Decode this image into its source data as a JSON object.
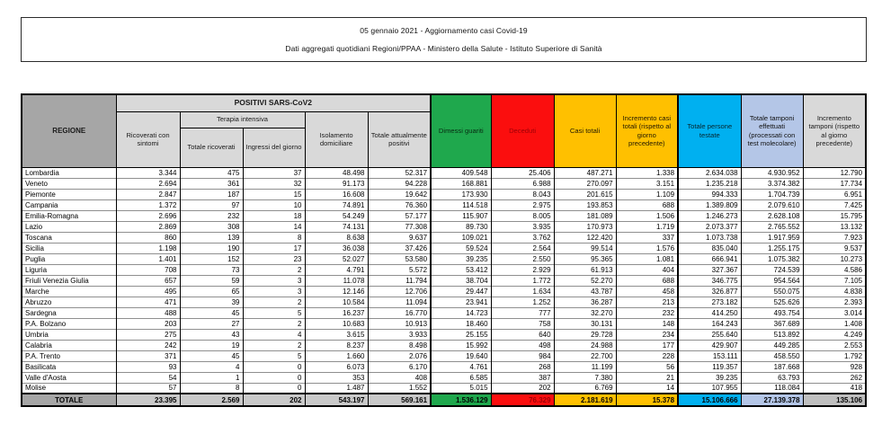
{
  "title": {
    "line1": "05 gennaio 2021 - Aggiornamento casi Covid-19",
    "line2": "Dati aggregati quotidiani Regioni/PPAA - Ministero della Salute - Istituto Superiore di Sanità"
  },
  "table": {
    "headers": {
      "regione": "REGIONE",
      "positivi_group": "POSITIVI SARS-CoV2",
      "ricoverati_sintomi": "Ricoverati con sintomi",
      "terapia_group": "Terapia intensiva",
      "totale_ricoverati": "Totale ricoverati",
      "ingressi_giorno": "Ingressi del giorno",
      "isolamento": "Isolamento domiciliare",
      "attualmente_positivi": "Totale attualmente positivi",
      "dimessi_guariti": "Dimessi guariti",
      "deceduti": "Deceduti",
      "casi_totali": "Casi totali",
      "incremento_casi": "Incremento casi totali (rispetto al giorno precedente)",
      "persone_testate": "Totale persone testate",
      "tamponi_effettuati": "Totale tamponi effettuati (processati con test molecolare)",
      "incremento_tamponi": "Incremento tamponi (rispetto al giorno precedente)"
    },
    "rows": [
      {
        "region": "Lombardia",
        "values": [
          "3.344",
          "475",
          "37",
          "48.498",
          "52.317",
          "409.548",
          "25.406",
          "487.271",
          "1.338",
          "2.634.038",
          "4.930.952",
          "12.790"
        ]
      },
      {
        "region": "Veneto",
        "values": [
          "2.694",
          "361",
          "32",
          "91.173",
          "94.228",
          "168.881",
          "6.988",
          "270.097",
          "3.151",
          "1.235.218",
          "3.374.382",
          "17.734"
        ]
      },
      {
        "region": "Piemonte",
        "values": [
          "2.847",
          "187",
          "15",
          "16.608",
          "19.642",
          "173.930",
          "8.043",
          "201.615",
          "1.109",
          "994.333",
          "1.704.739",
          "6.951"
        ]
      },
      {
        "region": "Campania",
        "values": [
          "1.372",
          "97",
          "10",
          "74.891",
          "76.360",
          "114.518",
          "2.975",
          "193.853",
          "688",
          "1.389.809",
          "2.079.610",
          "7.425"
        ]
      },
      {
        "region": "Emilia-Romagna",
        "values": [
          "2.696",
          "232",
          "18",
          "54.249",
          "57.177",
          "115.907",
          "8.005",
          "181.089",
          "1.506",
          "1.246.273",
          "2.628.108",
          "15.795"
        ]
      },
      {
        "region": "Lazio",
        "values": [
          "2.869",
          "308",
          "14",
          "74.131",
          "77.308",
          "89.730",
          "3.935",
          "170.973",
          "1.719",
          "2.073.377",
          "2.765.552",
          "13.132"
        ]
      },
      {
        "region": "Toscana",
        "values": [
          "860",
          "139",
          "8",
          "8.638",
          "9.637",
          "109.021",
          "3.762",
          "122.420",
          "337",
          "1.073.738",
          "1.917.959",
          "7.923"
        ]
      },
      {
        "region": "Sicilia",
        "values": [
          "1.198",
          "190",
          "17",
          "36.038",
          "37.426",
          "59.524",
          "2.564",
          "99.514",
          "1.576",
          "835.040",
          "1.255.175",
          "9.537"
        ]
      },
      {
        "region": "Puglia",
        "values": [
          "1.401",
          "152",
          "23",
          "52.027",
          "53.580",
          "39.235",
          "2.550",
          "95.365",
          "1.081",
          "666.941",
          "1.075.382",
          "10.273"
        ]
      },
      {
        "region": "Liguria",
        "values": [
          "708",
          "73",
          "2",
          "4.791",
          "5.572",
          "53.412",
          "2.929",
          "61.913",
          "404",
          "327.367",
          "724.539",
          "4.586"
        ]
      },
      {
        "region": "Friuli Venezia Giulia",
        "values": [
          "657",
          "59",
          "3",
          "11.078",
          "11.794",
          "38.704",
          "1.772",
          "52.270",
          "688",
          "346.775",
          "954.564",
          "7.105"
        ]
      },
      {
        "region": "Marche",
        "values": [
          "495",
          "65",
          "3",
          "12.146",
          "12.706",
          "29.447",
          "1.634",
          "43.787",
          "458",
          "326.877",
          "550.075",
          "4.838"
        ]
      },
      {
        "region": "Abruzzo",
        "values": [
          "471",
          "39",
          "2",
          "10.584",
          "11.094",
          "23.941",
          "1.252",
          "36.287",
          "213",
          "273.182",
          "525.626",
          "2.393"
        ]
      },
      {
        "region": "Sardegna",
        "values": [
          "488",
          "45",
          "5",
          "16.237",
          "16.770",
          "14.723",
          "777",
          "32.270",
          "232",
          "414.250",
          "493.754",
          "3.014"
        ]
      },
      {
        "region": "P.A. Bolzano",
        "values": [
          "203",
          "27",
          "2",
          "10.683",
          "10.913",
          "18.460",
          "758",
          "30.131",
          "148",
          "164.243",
          "367.689",
          "1.408"
        ]
      },
      {
        "region": "Umbria",
        "values": [
          "275",
          "43",
          "4",
          "3.615",
          "3.933",
          "25.155",
          "640",
          "29.728",
          "234",
          "255.640",
          "513.892",
          "4.249"
        ]
      },
      {
        "region": "Calabria",
        "values": [
          "242",
          "19",
          "2",
          "8.237",
          "8.498",
          "15.992",
          "498",
          "24.988",
          "177",
          "429.907",
          "449.285",
          "2.553"
        ]
      },
      {
        "region": "P.A. Trento",
        "values": [
          "371",
          "45",
          "5",
          "1.660",
          "2.076",
          "19.640",
          "984",
          "22.700",
          "228",
          "153.111",
          "458.550",
          "1.792"
        ]
      },
      {
        "region": "Basilicata",
        "values": [
          "93",
          "4",
          "0",
          "6.073",
          "6.170",
          "4.761",
          "268",
          "11.199",
          "56",
          "119.357",
          "187.668",
          "928"
        ]
      },
      {
        "region": "Valle d'Aosta",
        "values": [
          "54",
          "1",
          "0",
          "353",
          "408",
          "6.585",
          "387",
          "7.380",
          "21",
          "39.235",
          "63.793",
          "262"
        ]
      },
      {
        "region": "Molise",
        "values": [
          "57",
          "8",
          "0",
          "1.487",
          "1.552",
          "5.015",
          "202",
          "6.769",
          "14",
          "107.955",
          "118.084",
          "418"
        ]
      }
    ],
    "total": {
      "label": "TOTALE",
      "values": [
        "23.395",
        "2.569",
        "202",
        "543.197",
        "569.161",
        "1.536.129",
        "76.329",
        "2.181.619",
        "15.378",
        "15.106.666",
        "27.139.378",
        "135.106"
      ]
    }
  },
  "colors": {
    "dimessi_green": "#1FA84D",
    "deceduti_red": "#FB0E0E",
    "casi_yellow": "#FFC000",
    "testate_cyan": "#00B0F0",
    "tamponi_lightblue": "#B4C6E7",
    "header_dark_gray": "#A6A6A6",
    "header_light_gray": "#D9D9D9",
    "total_row_gray": "#C9C9C9",
    "deceduti_text": "#9C0006"
  }
}
